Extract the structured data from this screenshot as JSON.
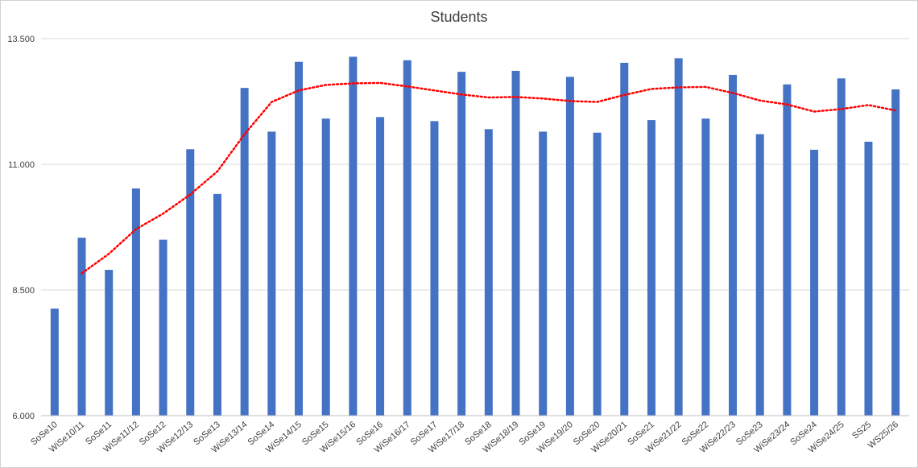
{
  "chart_data": {
    "type": "bar",
    "title": "Students",
    "xlabel": "",
    "ylabel": "",
    "ylim": [
      6000,
      13500
    ],
    "yticks": [
      "6.000",
      "8.500",
      "11.000",
      "13.500"
    ],
    "ytick_values": [
      6000,
      8500,
      11000,
      13500
    ],
    "grid": true,
    "legend": "none",
    "categories": [
      "SoSe10",
      "WiSe10/11",
      "SoSe11",
      "WiSe11/12",
      "SoSe12",
      "WiSe12/13",
      "SoSe13",
      "WiSe13/14",
      "SoSe14",
      "WiSe14/15",
      "SoSe15",
      "WiSe15/16",
      "SoSe16",
      "WiSe16/17",
      "SoSe17",
      "WiSe17/18",
      "SoSe18",
      "WiSe18/19",
      "SoSe19",
      "WiSe19/20",
      "SoSe20",
      "WiSe20/21",
      "SoSe21",
      "WiSe21/22",
      "SoSe22",
      "WiSe22/23",
      "SoSe23",
      "WiSe23/24",
      "SoSe24",
      "WiSe24/25",
      "SS25",
      "WS25/26"
    ],
    "series": [
      {
        "type": "bar",
        "color": "#4472C4",
        "values": [
          8130,
          9540,
          8900,
          10520,
          9500,
          11300,
          10410,
          12520,
          11650,
          13040,
          11910,
          13140,
          11940,
          13070,
          11860,
          12840,
          11700,
          12860,
          11650,
          12740,
          11630,
          13020,
          11880,
          13110,
          11910,
          12780,
          11600,
          12590,
          11290,
          12710,
          11450,
          12490
        ]
      },
      {
        "type": "line",
        "style": "dotted",
        "color": "#FF0000",
        "values": [
          null,
          8830,
          9220,
          9710,
          10020,
          10400,
          10860,
          11600,
          12240,
          12470,
          12580,
          12610,
          12620,
          12550,
          12470,
          12390,
          12330,
          12340,
          12310,
          12260,
          12240,
          12380,
          12500,
          12530,
          12540,
          12420,
          12270,
          12190,
          12050,
          12100,
          12180,
          12070
        ]
      }
    ]
  }
}
